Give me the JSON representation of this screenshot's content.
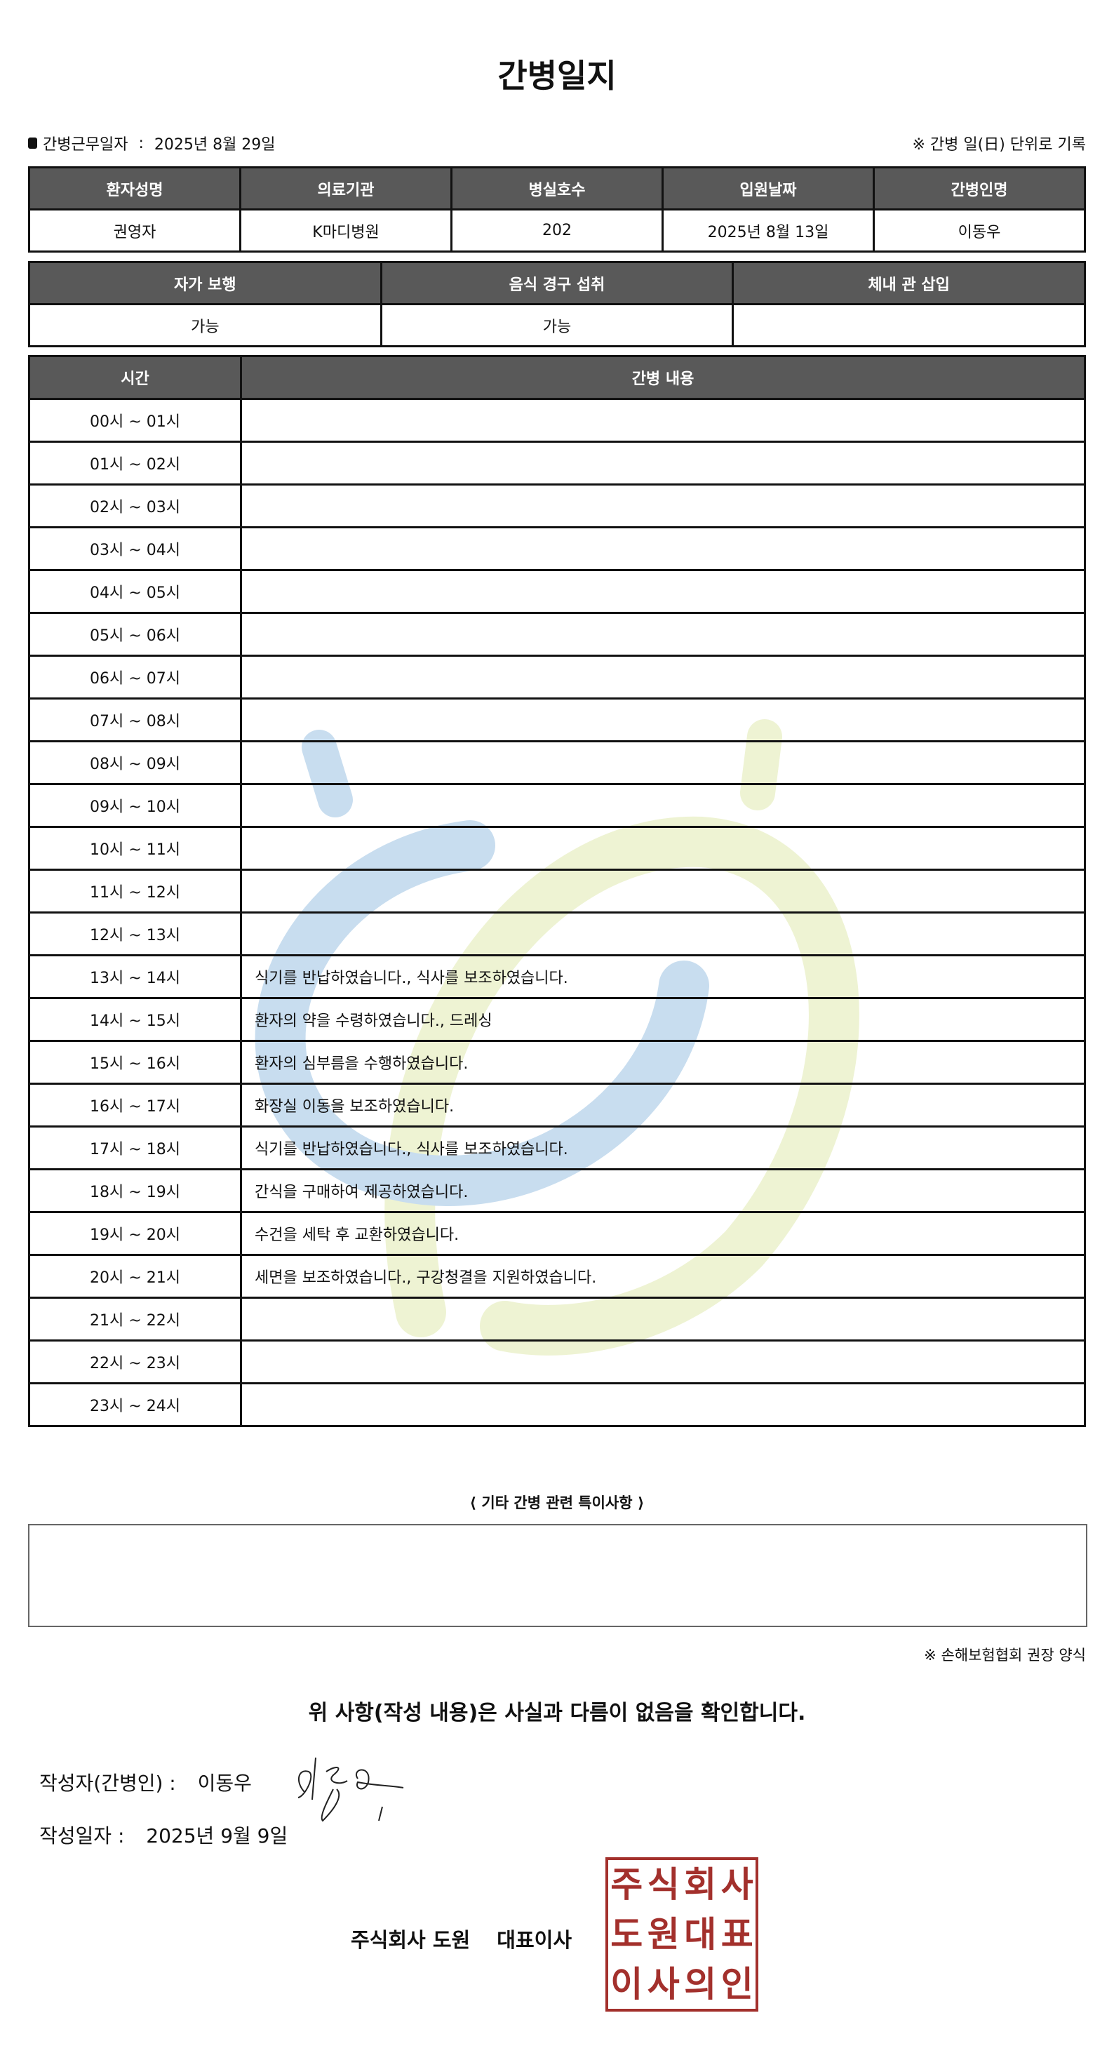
{
  "title": "간병일지",
  "work_date_label": "간병근무일자",
  "work_date": "2025년 8월 29일",
  "note_unit": "※ 간병 일(日) 단위로 기록",
  "info_table": {
    "headers": [
      "환자성명",
      "의료기관",
      "병실호수",
      "입원날짜",
      "간병인명"
    ],
    "values": [
      "권영자",
      "K마디병원",
      "202",
      "2025년 8월 13일",
      "이동우"
    ]
  },
  "status_table": {
    "headers": [
      "자가 보행",
      "음식 경구 섭취",
      "체내 관 삽입"
    ],
    "values": [
      "가능",
      "가능",
      ""
    ]
  },
  "log_table": {
    "headers": [
      "시간",
      "간병 내용"
    ],
    "rows": [
      {
        "time": "00시 ~ 01시",
        "content": ""
      },
      {
        "time": "01시 ~ 02시",
        "content": ""
      },
      {
        "time": "02시 ~ 03시",
        "content": ""
      },
      {
        "time": "03시 ~ 04시",
        "content": ""
      },
      {
        "time": "04시 ~ 05시",
        "content": ""
      },
      {
        "time": "05시 ~ 06시",
        "content": ""
      },
      {
        "time": "06시 ~ 07시",
        "content": ""
      },
      {
        "time": "07시 ~ 08시",
        "content": ""
      },
      {
        "time": "08시 ~ 09시",
        "content": ""
      },
      {
        "time": "09시 ~ 10시",
        "content": ""
      },
      {
        "time": "10시 ~ 11시",
        "content": ""
      },
      {
        "time": "11시 ~ 12시",
        "content": ""
      },
      {
        "time": "12시 ~ 13시",
        "content": ""
      },
      {
        "time": "13시 ~ 14시",
        "content": "식기를 반납하였습니다., 식사를 보조하였습니다."
      },
      {
        "time": "14시 ~ 15시",
        "content": "환자의 약을 수령하였습니다., 드레싱"
      },
      {
        "time": "15시 ~ 16시",
        "content": "환자의 심부름을 수행하였습니다."
      },
      {
        "time": "16시 ~ 17시",
        "content": "화장실 이동을 보조하였습니다."
      },
      {
        "time": "17시 ~ 18시",
        "content": "식기를 반납하였습니다., 식사를 보조하였습니다."
      },
      {
        "time": "18시 ~ 19시",
        "content": "간식을 구매하여 제공하였습니다."
      },
      {
        "time": "19시 ~ 20시",
        "content": "수건을 세탁 후 교환하였습니다."
      },
      {
        "time": "20시 ~ 21시",
        "content": "세면을 보조하였습니다., 구강청결을 지원하였습니다."
      },
      {
        "time": "21시 ~ 22시",
        "content": ""
      },
      {
        "time": "22시 ~ 23시",
        "content": ""
      },
      {
        "time": "23시 ~ 24시",
        "content": ""
      }
    ]
  },
  "notes_title": "⟨ 기타 간병 관련 특이사항 ⟩",
  "notes": "",
  "footnote": "※ 손해보험협회 권장 양식",
  "confirm": "위 사항(작성 내용)은 사실과 다름이 없음을 확인합니다.",
  "writer_label": "작성자(간병인) :",
  "writer_name": "이동우",
  "date_label": "작성일자 :",
  "date_value": "2025년 9월 9일",
  "company": "주식회사 도원",
  "ceo_title": "대표이사",
  "stamp_text": [
    "주",
    "식",
    "회",
    "사",
    "도",
    "원",
    "대",
    "표",
    "이",
    "사",
    "의",
    "인"
  ],
  "colors": {
    "header_bg": "#595959",
    "stamp": "#a3302c",
    "watermark_blue": "#c8ddef",
    "watermark_yellow": "#eef3d3"
  }
}
